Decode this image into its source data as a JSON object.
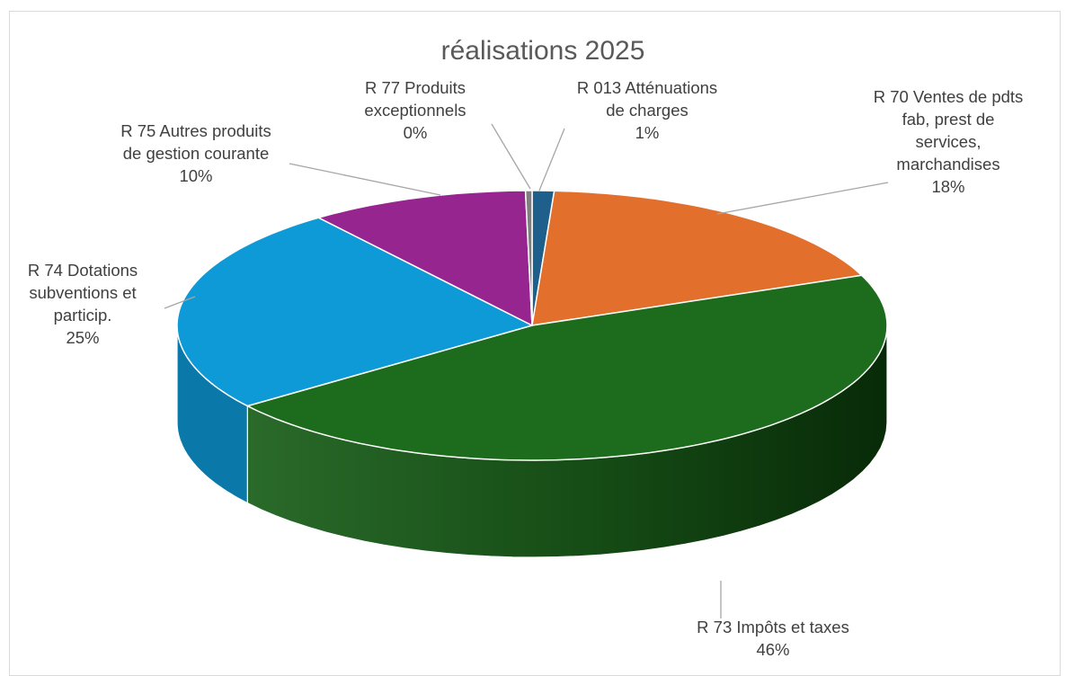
{
  "chart_data": {
    "type": "pie",
    "style": "3d",
    "title": "réalisations 2025",
    "slices": [
      {
        "label_lines": [
          "R 013 Atténuations",
          "de charges"
        ],
        "percent": "1%",
        "value": 1,
        "color": "#1f5f8b",
        "side_color": "#174a6d"
      },
      {
        "label_lines": [
          "R 70 Ventes de pdts",
          "fab, prest de",
          "services,",
          "marchandises"
        ],
        "percent": "18%",
        "value": 18,
        "color": "#e36f2d",
        "side_color": "#b3521d"
      },
      {
        "label_lines": [
          "R 73 Impôts et taxes"
        ],
        "percent": "46%",
        "value": 46,
        "color": "#1d6b1d",
        "side_color": "#0f3f0f"
      },
      {
        "label_lines": [
          "R 74 Dotations",
          "subventions et",
          "particip."
        ],
        "percent": "25%",
        "value": 25,
        "color": "#0e9ad6",
        "side_color": "#0a78a8"
      },
      {
        "label_lines": [
          "R 75 Autres produits",
          "de gestion courante"
        ],
        "percent": "10%",
        "value": 10,
        "color": "#962590",
        "side_color": "#6d1a69"
      },
      {
        "label_lines": [
          "R 77 Produits",
          "exceptionnels"
        ],
        "percent": "0%",
        "value": 0.3,
        "color": "#7f7f7f",
        "side_color": "#5f5f5f"
      }
    ]
  }
}
